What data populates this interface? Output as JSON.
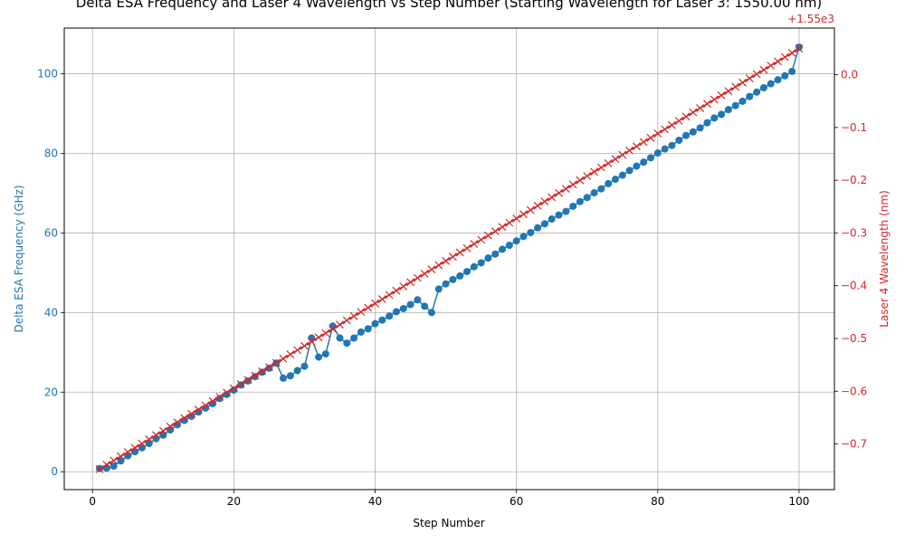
{
  "chart_data": {
    "type": "line",
    "title": "Delta ESA Frequency and Laser 4 Wavelength vs Step Number (Starting Wavelength for Laser 3: 1550.00 nm)",
    "xlabel": "Step Number",
    "ylabel_left": "Delta ESA Frequency (GHz)",
    "ylabel_right": "Laser 4 Wavelength (nm)",
    "right_offset_label": "+1.55e3",
    "xlim": [
      -4,
      105
    ],
    "ylim_left": [
      -4.5,
      111.5
    ],
    "ylim_right": [
      -0.7865,
      0.0885
    ],
    "x_ticks": [
      0,
      20,
      40,
      60,
      80,
      100
    ],
    "x_tick_labels": [
      "0",
      "20",
      "40",
      "60",
      "80",
      "100"
    ],
    "y_left_ticks": [
      0,
      20,
      40,
      60,
      80,
      100
    ],
    "y_left_tick_labels": [
      "0",
      "20",
      "40",
      "60",
      "80",
      "100"
    ],
    "y_right_ticks": [
      -0.7,
      -0.6,
      -0.5,
      -0.4,
      -0.3,
      -0.2,
      -0.1,
      0.0
    ],
    "y_right_tick_labels": [
      "−0.7",
      "−0.6",
      "−0.5",
      "−0.4",
      "−0.3",
      "−0.2",
      "−0.1",
      "0.0"
    ],
    "grid": true,
    "colors": {
      "left": "#1f77b4",
      "right": "#d62728"
    },
    "series": [
      {
        "name": "",
        "axis": "left",
        "marker": "circle",
        "color": "#1f77b4",
        "x": [
          1,
          2,
          3,
          4,
          5,
          6,
          7,
          8,
          9,
          10,
          11,
          12,
          13,
          14,
          15,
          16,
          17,
          18,
          19,
          20,
          21,
          22,
          23,
          24,
          25,
          26,
          27,
          28,
          29,
          30,
          31,
          32,
          33,
          34,
          35,
          36,
          37,
          38,
          39,
          40,
          41,
          42,
          43,
          44,
          45,
          46,
          47,
          48,
          49,
          50,
          51,
          52,
          53,
          54,
          55,
          56,
          57,
          58,
          59,
          60,
          61,
          62,
          63,
          64,
          65,
          66,
          67,
          68,
          69,
          70,
          71,
          72,
          73,
          74,
          75,
          76,
          77,
          78,
          79,
          80,
          81,
          82,
          83,
          84,
          85,
          86,
          87,
          88,
          89,
          90,
          91,
          92,
          93,
          94,
          95,
          96,
          97,
          98,
          99,
          100
        ],
        "values": [
          0.8,
          0.9,
          1.4,
          2.7,
          4.0,
          5.0,
          6.0,
          7.1,
          8.3,
          9.2,
          10.5,
          11.8,
          12.9,
          13.9,
          15.0,
          16.0,
          17.1,
          18.4,
          19.4,
          20.5,
          21.8,
          22.8,
          23.9,
          25.0,
          26.0,
          27.3,
          23.5,
          24.1,
          25.4,
          26.5,
          33.6,
          28.8,
          29.6,
          36.6,
          33.6,
          32.3,
          33.6,
          35.1,
          35.9,
          37.2,
          38.1,
          39.1,
          40.2,
          41.0,
          42.0,
          43.2,
          41.6,
          40.0,
          45.9,
          47.2,
          48.3,
          49.2,
          50.3,
          51.5,
          52.5,
          53.7,
          54.7,
          55.9,
          56.9,
          58.0,
          59.1,
          60.1,
          61.3,
          62.3,
          63.5,
          64.5,
          65.4,
          66.7,
          67.9,
          68.9,
          70.1,
          71.1,
          72.4,
          73.5,
          74.5,
          75.7,
          76.8,
          77.8,
          78.9,
          80.1,
          81.1,
          82.0,
          83.3,
          84.5,
          85.4,
          86.4,
          87.7,
          88.9,
          89.8,
          91.0,
          92.0,
          93.1,
          94.3,
          95.4,
          96.5,
          97.5,
          98.5,
          99.5,
          100.6,
          106.7
        ]
      },
      {
        "name": "",
        "axis": "right",
        "marker": "x",
        "color": "#d62728",
        "x_start": 1,
        "x_end": 100,
        "y_start": -0.7475,
        "y_end": 0.0495
      }
    ]
  }
}
